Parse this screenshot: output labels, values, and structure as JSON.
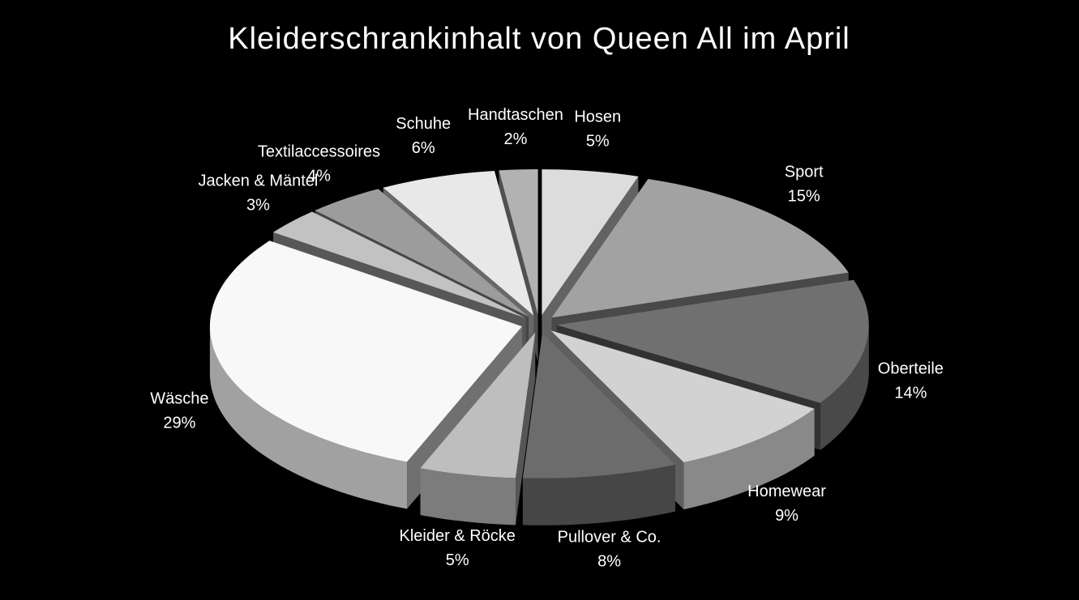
{
  "chart_data": {
    "type": "pie",
    "title": "Kleiderschrankinhalt von Queen All im April",
    "categories": [
      "Hosen",
      "Sport",
      "Oberteile",
      "Homewear",
      "Pullover & Co.",
      "Kleider & Röcke",
      "Wäsche",
      "Jacken & Mäntel",
      "Textilaccessoires",
      "Schuhe",
      "Handtaschen"
    ],
    "values": [
      5,
      15,
      14,
      9,
      8,
      5,
      29,
      3,
      4,
      6,
      2
    ],
    "value_labels": [
      "5%",
      "15%",
      "14%",
      "9%",
      "8%",
      "5%",
      "29%",
      "3%",
      "4%",
      "6%",
      "2%"
    ],
    "colors": [
      "#dcdcdc",
      "#a2a2a2",
      "#707070",
      "#d2d2d2",
      "#6c6c6c",
      "#bebebe",
      "#f8f8f8",
      "#c2c2c2",
      "#9c9c9c",
      "#e8e8e8",
      "#b2b2b2"
    ]
  }
}
